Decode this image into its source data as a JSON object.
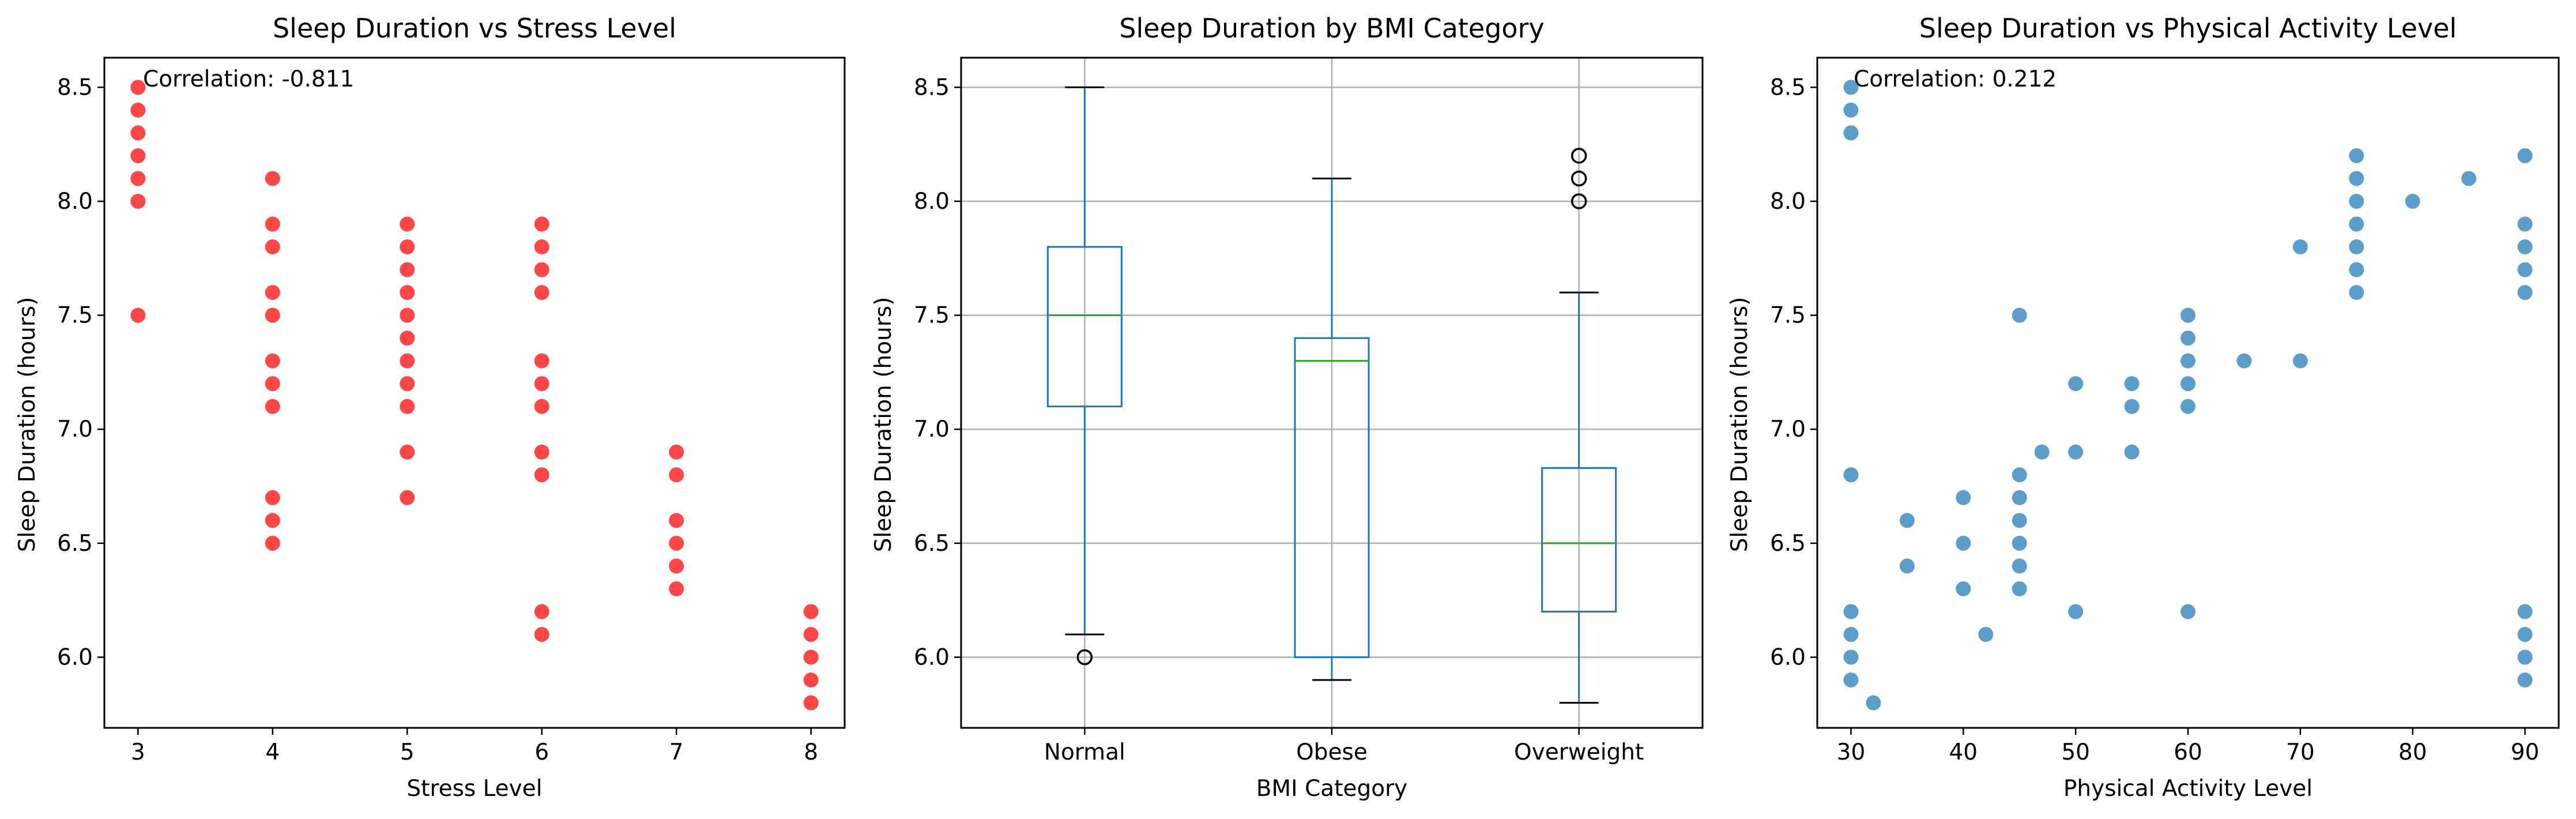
{
  "colors": {
    "red": "#ff0000",
    "blue": "#1f77b4",
    "median": "#2ca02c",
    "grid": "#b0b0b0"
  },
  "chart_data": [
    {
      "type": "scatter",
      "title": "Sleep Duration vs Stress Level",
      "xlabel": "Stress Level",
      "ylabel": "Sleep Duration (hours)",
      "annotation": "Correlation: -0.811",
      "xlim": [
        2.75,
        8.25
      ],
      "ylim": [
        5.69,
        8.63
      ],
      "xticks": [
        "3",
        "4",
        "5",
        "6",
        "7",
        "8"
      ],
      "yticks": [
        "6.0",
        "6.5",
        "7.0",
        "7.5",
        "8.0",
        "8.5"
      ],
      "grid": false,
      "color": "#ff0000",
      "points": [
        {
          "x": 3,
          "y": 8.5
        },
        {
          "x": 3,
          "y": 8.4
        },
        {
          "x": 3,
          "y": 8.3
        },
        {
          "x": 3,
          "y": 8.2
        },
        {
          "x": 3,
          "y": 8.1
        },
        {
          "x": 3,
          "y": 8.0
        },
        {
          "x": 3,
          "y": 7.5
        },
        {
          "x": 4,
          "y": 8.1
        },
        {
          "x": 4,
          "y": 7.9
        },
        {
          "x": 4,
          "y": 7.8
        },
        {
          "x": 4,
          "y": 7.6
        },
        {
          "x": 4,
          "y": 7.5
        },
        {
          "x": 4,
          "y": 7.3
        },
        {
          "x": 4,
          "y": 7.2
        },
        {
          "x": 4,
          "y": 7.1
        },
        {
          "x": 4,
          "y": 6.7
        },
        {
          "x": 4,
          "y": 6.6
        },
        {
          "x": 4,
          "y": 6.5
        },
        {
          "x": 5,
          "y": 7.9
        },
        {
          "x": 5,
          "y": 7.8
        },
        {
          "x": 5,
          "y": 7.7
        },
        {
          "x": 5,
          "y": 7.6
        },
        {
          "x": 5,
          "y": 7.5
        },
        {
          "x": 5,
          "y": 7.4
        },
        {
          "x": 5,
          "y": 7.3
        },
        {
          "x": 5,
          "y": 7.2
        },
        {
          "x": 5,
          "y": 7.1
        },
        {
          "x": 5,
          "y": 6.9
        },
        {
          "x": 5,
          "y": 6.7
        },
        {
          "x": 6,
          "y": 7.9
        },
        {
          "x": 6,
          "y": 7.8
        },
        {
          "x": 6,
          "y": 7.7
        },
        {
          "x": 6,
          "y": 7.6
        },
        {
          "x": 6,
          "y": 7.3
        },
        {
          "x": 6,
          "y": 7.2
        },
        {
          "x": 6,
          "y": 7.1
        },
        {
          "x": 6,
          "y": 6.9
        },
        {
          "x": 6,
          "y": 6.8
        },
        {
          "x": 6,
          "y": 6.2
        },
        {
          "x": 6,
          "y": 6.1
        },
        {
          "x": 7,
          "y": 6.9
        },
        {
          "x": 7,
          "y": 6.8
        },
        {
          "x": 7,
          "y": 6.6
        },
        {
          "x": 7,
          "y": 6.5
        },
        {
          "x": 7,
          "y": 6.4
        },
        {
          "x": 7,
          "y": 6.3
        },
        {
          "x": 8,
          "y": 6.2
        },
        {
          "x": 8,
          "y": 6.1
        },
        {
          "x": 8,
          "y": 6.0
        },
        {
          "x": 8,
          "y": 5.9
        },
        {
          "x": 8,
          "y": 5.8
        }
      ]
    },
    {
      "type": "box",
      "title": "Sleep Duration by BMI Category",
      "xlabel": "BMI Category",
      "ylabel": "Sleep Duration (hours)",
      "categories": [
        "Normal",
        "Obese",
        "Overweight"
      ],
      "ylim": [
        5.69,
        8.63
      ],
      "yticks": [
        "6.0",
        "6.5",
        "7.0",
        "7.5",
        "8.0",
        "8.5"
      ],
      "grid": true,
      "boxes": [
        {
          "whisker_low": 6.1,
          "q1": 7.1,
          "median": 7.5,
          "q3": 7.8,
          "whisker_high": 8.5,
          "outliers": [
            6.0
          ]
        },
        {
          "whisker_low": 5.9,
          "q1": 6.0,
          "median": 7.3,
          "q3": 7.4,
          "whisker_high": 8.1,
          "outliers": []
        },
        {
          "whisker_low": 5.8,
          "q1": 6.2,
          "median": 6.5,
          "q3": 6.83,
          "whisker_high": 7.6,
          "outliers": [
            8.0,
            8.1,
            8.2
          ]
        }
      ]
    },
    {
      "type": "scatter",
      "title": "Sleep Duration vs Physical Activity Level",
      "xlabel": "Physical Activity Level",
      "ylabel": "Sleep Duration (hours)",
      "annotation": "Correlation: 0.212",
      "xlim": [
        27,
        93
      ],
      "ylim": [
        5.69,
        8.63
      ],
      "xticks": [
        "30",
        "40",
        "50",
        "60",
        "70",
        "80",
        "90"
      ],
      "yticks": [
        "6.0",
        "6.5",
        "7.0",
        "7.5",
        "8.0",
        "8.5"
      ],
      "grid": false,
      "color": "#1f77b4",
      "points": [
        {
          "x": 30,
          "y": 8.5
        },
        {
          "x": 30,
          "y": 8.4
        },
        {
          "x": 30,
          "y": 8.3
        },
        {
          "x": 30,
          "y": 6.8
        },
        {
          "x": 30,
          "y": 6.2
        },
        {
          "x": 30,
          "y": 6.1
        },
        {
          "x": 30,
          "y": 6.0
        },
        {
          "x": 30,
          "y": 5.9
        },
        {
          "x": 32,
          "y": 5.8
        },
        {
          "x": 35,
          "y": 6.6
        },
        {
          "x": 35,
          "y": 6.4
        },
        {
          "x": 40,
          "y": 6.7
        },
        {
          "x": 40,
          "y": 6.5
        },
        {
          "x": 40,
          "y": 6.3
        },
        {
          "x": 42,
          "y": 6.1
        },
        {
          "x": 45,
          "y": 7.5
        },
        {
          "x": 45,
          "y": 6.8
        },
        {
          "x": 45,
          "y": 6.7
        },
        {
          "x": 45,
          "y": 6.6
        },
        {
          "x": 45,
          "y": 6.5
        },
        {
          "x": 45,
          "y": 6.4
        },
        {
          "x": 45,
          "y": 6.3
        },
        {
          "x": 47,
          "y": 6.9
        },
        {
          "x": 50,
          "y": 7.2
        },
        {
          "x": 50,
          "y": 6.9
        },
        {
          "x": 50,
          "y": 6.2
        },
        {
          "x": 55,
          "y": 7.2
        },
        {
          "x": 55,
          "y": 7.1
        },
        {
          "x": 55,
          "y": 6.9
        },
        {
          "x": 60,
          "y": 7.5
        },
        {
          "x": 60,
          "y": 7.4
        },
        {
          "x": 60,
          "y": 7.3
        },
        {
          "x": 60,
          "y": 7.2
        },
        {
          "x": 60,
          "y": 7.1
        },
        {
          "x": 60,
          "y": 6.2
        },
        {
          "x": 65,
          "y": 7.3
        },
        {
          "x": 70,
          "y": 7.8
        },
        {
          "x": 70,
          "y": 7.3
        },
        {
          "x": 75,
          "y": 8.2
        },
        {
          "x": 75,
          "y": 8.1
        },
        {
          "x": 75,
          "y": 8.0
        },
        {
          "x": 75,
          "y": 7.9
        },
        {
          "x": 75,
          "y": 7.8
        },
        {
          "x": 75,
          "y": 7.7
        },
        {
          "x": 75,
          "y": 7.6
        },
        {
          "x": 80,
          "y": 8.0
        },
        {
          "x": 85,
          "y": 8.1
        },
        {
          "x": 90,
          "y": 8.2
        },
        {
          "x": 90,
          "y": 7.9
        },
        {
          "x": 90,
          "y": 7.8
        },
        {
          "x": 90,
          "y": 7.7
        },
        {
          "x": 90,
          "y": 7.6
        },
        {
          "x": 90,
          "y": 6.2
        },
        {
          "x": 90,
          "y": 6.1
        },
        {
          "x": 90,
          "y": 6.0
        },
        {
          "x": 90,
          "y": 5.9
        }
      ]
    }
  ]
}
